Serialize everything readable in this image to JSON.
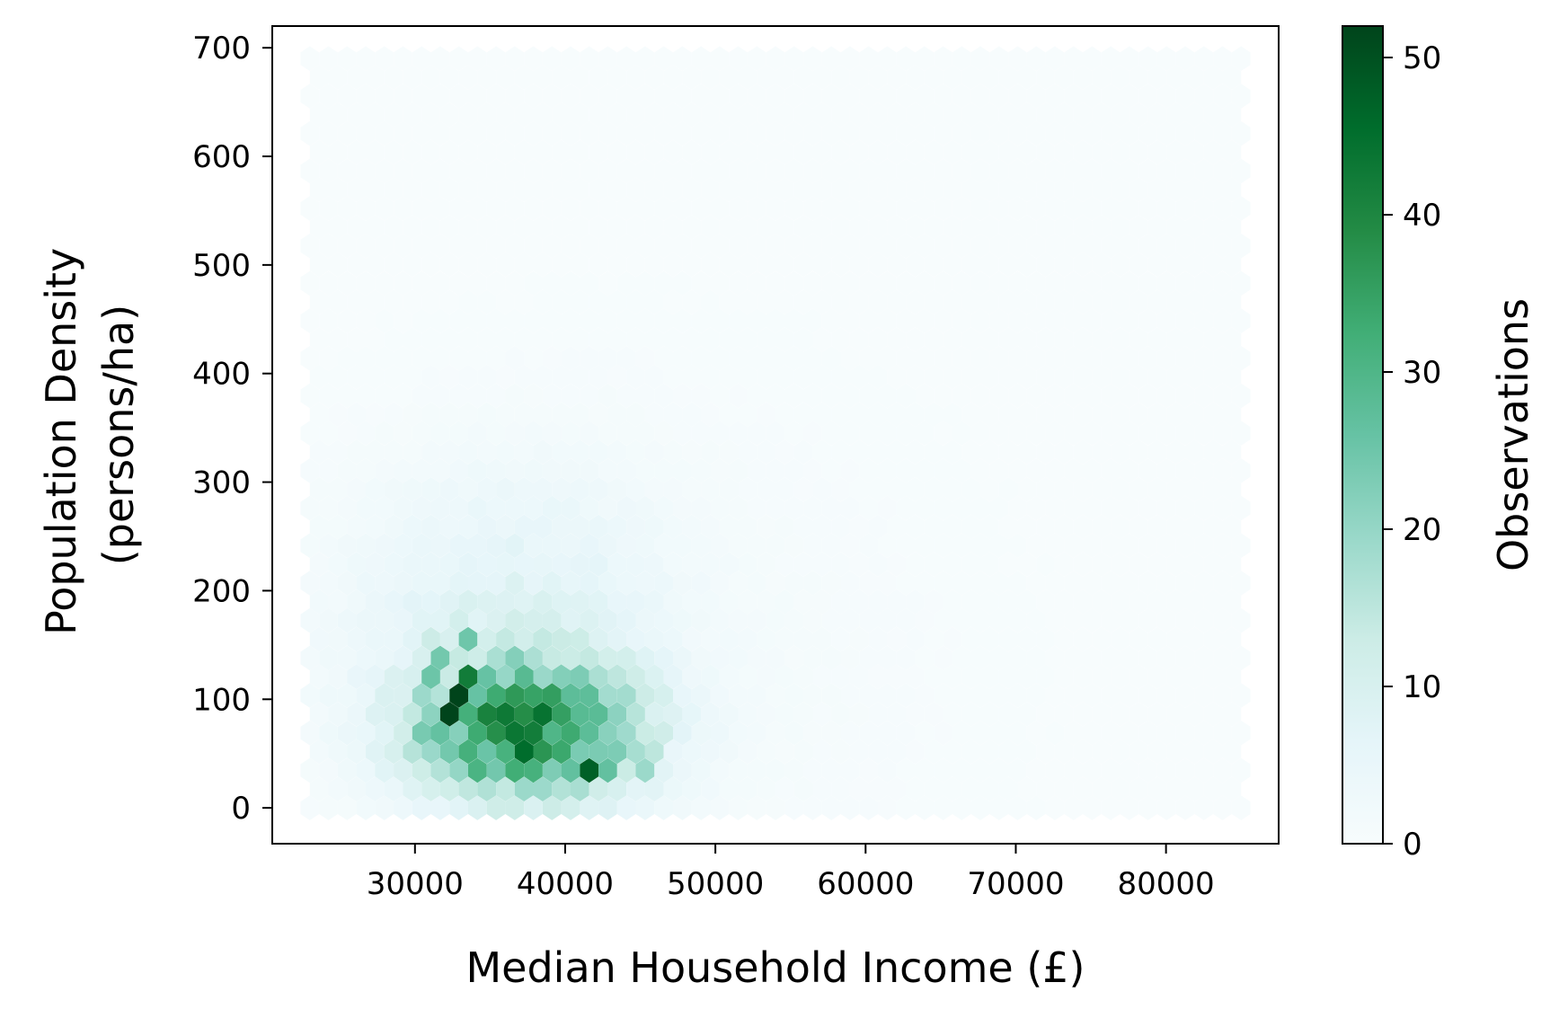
{
  "chart_data": {
    "type": "hexbin",
    "xlabel": "Median Household Income (£)",
    "ylabel_lines": [
      "Population Density",
      "(persons/ha)"
    ],
    "xlim": [
      20500,
      87500
    ],
    "ylim": [
      -33,
      720
    ],
    "xticks": [
      30000,
      40000,
      50000,
      60000,
      70000,
      80000
    ],
    "yticks": [
      0,
      100,
      200,
      300,
      400,
      500,
      600,
      700
    ],
    "gridsize": 50,
    "hex_extent_x": [
      23000,
      85000
    ],
    "hex_extent_y": [
      0,
      690
    ],
    "grid": false,
    "colormap": "BuGn",
    "colorbar": {
      "label": "Observations",
      "min": 0,
      "max": 52,
      "ticks": [
        0,
        10,
        20,
        30,
        40,
        50
      ]
    },
    "cluster_peak": {
      "x": 39000,
      "y": 60,
      "count": 52
    },
    "high_count_cells": [
      {
        "x": 33000,
        "y": 100,
        "count": 52
      },
      {
        "x": 39000,
        "y": 60,
        "count": 52
      },
      {
        "x": 32500,
        "y": 85,
        "count": 48
      },
      {
        "x": 38000,
        "y": 55,
        "count": 47
      },
      {
        "x": 41500,
        "y": 38,
        "count": 46
      },
      {
        "x": 35500,
        "y": 60,
        "count": 44
      },
      {
        "x": 37000,
        "y": 50,
        "count": 44
      },
      {
        "x": 40000,
        "y": 50,
        "count": 43
      },
      {
        "x": 32000,
        "y": 60,
        "count": 42
      },
      {
        "x": 36500,
        "y": 85,
        "count": 40
      },
      {
        "x": 39500,
        "y": 75,
        "count": 40
      },
      {
        "x": 41000,
        "y": 65,
        "count": 40
      },
      {
        "x": 42500,
        "y": 60,
        "count": 38
      },
      {
        "x": 34500,
        "y": 80,
        "count": 38
      },
      {
        "x": 31000,
        "y": 110,
        "count": 36
      },
      {
        "x": 33500,
        "y": 120,
        "count": 36
      },
      {
        "x": 36000,
        "y": 45,
        "count": 36
      },
      {
        "x": 43000,
        "y": 45,
        "count": 35
      },
      {
        "x": 38500,
        "y": 95,
        "count": 34
      },
      {
        "x": 40500,
        "y": 90,
        "count": 32
      },
      {
        "x": 44000,
        "y": 50,
        "count": 32
      },
      {
        "x": 36500,
        "y": 110,
        "count": 30
      },
      {
        "x": 34000,
        "y": 35,
        "count": 30
      },
      {
        "x": 30000,
        "y": 75,
        "count": 28
      },
      {
        "x": 33500,
        "y": 160,
        "count": 28
      },
      {
        "x": 31500,
        "y": 145,
        "count": 26
      },
      {
        "x": 36500,
        "y": 135,
        "count": 26
      },
      {
        "x": 45500,
        "y": 45,
        "count": 26
      },
      {
        "x": 38000,
        "y": 120,
        "count": 25
      },
      {
        "x": 42000,
        "y": 105,
        "count": 22
      }
    ]
  }
}
